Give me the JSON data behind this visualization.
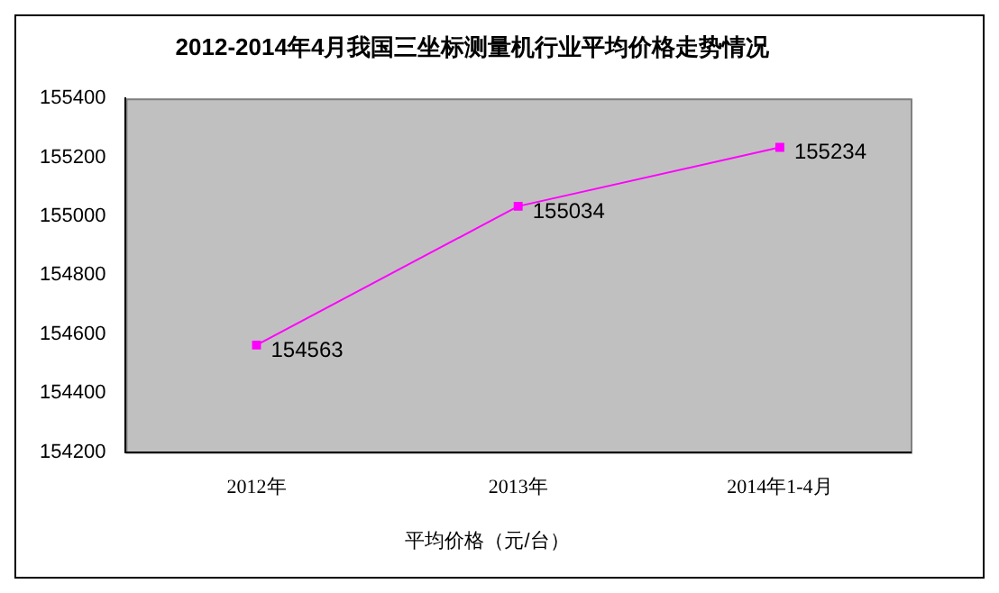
{
  "chart_data": {
    "type": "line",
    "title": "2012-2014年4月我国三坐标测量机行业平均价格走势情况",
    "categories": [
      "2012年",
      "2013年",
      "2014年1-4月"
    ],
    "series": [
      {
        "name": "平均价格（元/台）",
        "color": "#ff00ff",
        "values": [
          154563,
          155034,
          155234
        ]
      }
    ],
    "ylim": [
      154200,
      155400
    ],
    "yticks": [
      154200,
      154400,
      154600,
      154800,
      155000,
      155200,
      155400
    ],
    "grid": false,
    "legend": "bottom",
    "marker": "square",
    "line_style": "solid",
    "data_labels": true
  }
}
